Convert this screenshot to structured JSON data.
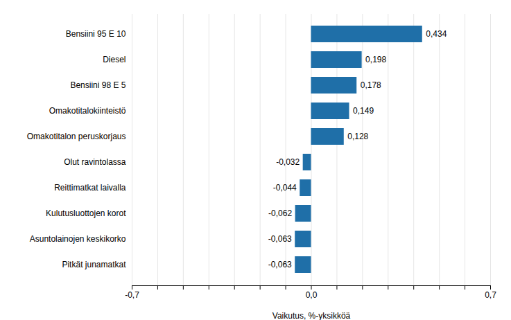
{
  "chart_data": {
    "type": "bar",
    "orientation": "horizontal",
    "categories": [
      "Pitkät junamatkat",
      "Asuntolainojen keskikorko",
      "Kulutusluottojen korot",
      "Reittimatkat laivalla",
      "Olut ravintolassa",
      "Omakotitalon peruskorjaus",
      "Omakotitalokiinteistö",
      "Bensiini 98 E 5",
      "Diesel",
      "Bensiini 95 E 10"
    ],
    "values": [
      -0.063,
      -0.063,
      -0.062,
      -0.044,
      -0.032,
      0.128,
      0.149,
      0.178,
      0.198,
      0.434
    ],
    "value_labels": [
      "-0,063",
      "-0,063",
      "-0,062",
      "-0,044",
      "-0,032",
      "0,128",
      "0,149",
      "0,178",
      "0,198",
      "0,434"
    ],
    "data_labels": true,
    "color": "#1f6fa8",
    "xlabel": "Vaikutus, %-yksikköä",
    "xlim": [
      -0.7,
      0.7
    ],
    "xticks": [
      {
        "value": -0.7,
        "label": "-0,7"
      },
      {
        "value": -0.6,
        "label": null
      },
      {
        "value": -0.5,
        "label": null
      },
      {
        "value": -0.4,
        "label": null
      },
      {
        "value": -0.3,
        "label": null
      },
      {
        "value": -0.2,
        "label": null
      },
      {
        "value": -0.1,
        "label": null
      },
      {
        "value": 0.0,
        "label": "0,0"
      },
      {
        "value": 0.1,
        "label": null
      },
      {
        "value": 0.2,
        "label": null
      },
      {
        "value": 0.3,
        "label": null
      },
      {
        "value": 0.4,
        "label": null
      },
      {
        "value": 0.5,
        "label": null
      },
      {
        "value": 0.6,
        "label": null
      },
      {
        "value": 0.7,
        "label": "0,7"
      }
    ],
    "grid": true
  }
}
